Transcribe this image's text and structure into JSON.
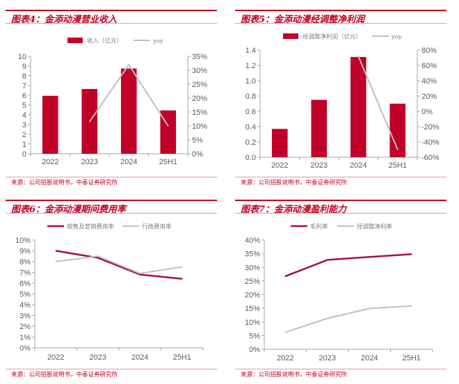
{
  "colors": {
    "accent": "#c00020",
    "bar": "#c00028",
    "line_primary": "#a8103a",
    "line_secondary": "#bfbfbf",
    "axis": "#a6a6a6",
    "text": "#595959"
  },
  "charts": [
    {
      "title": "图表4：金添动漫营业收入",
      "source": "来源：公司招股说明书，中泰证券研究所",
      "chart_data": {
        "type": "bar+line",
        "categories": [
          "2022",
          "2023",
          "2024",
          "25H1"
        ],
        "series": [
          {
            "name": "收入（亿元）",
            "type": "bar",
            "axis": "left",
            "values": [
              5.95,
              6.65,
              8.75,
              4.45
            ]
          },
          {
            "name": "yoy",
            "type": "line",
            "axis": "right",
            "values": [
              null,
              11.5,
              32.0,
              10.0
            ]
          }
        ],
        "ylim_left": [
          0,
          10
        ],
        "yticks_left": [
          "0",
          "1",
          "2",
          "3",
          "4",
          "5",
          "6",
          "7",
          "8",
          "9",
          "10"
        ],
        "ylim_right": [
          0,
          35
        ],
        "yticks_right": [
          "0%",
          "5%",
          "10%",
          "15%",
          "20%",
          "25%",
          "30%",
          "35%"
        ],
        "legend": "top",
        "grid": false
      }
    },
    {
      "title": "图表5：金添动漫经调整净利润",
      "source": "来源：公司招股说明书，中泰证券研究所",
      "chart_data": {
        "type": "bar+line",
        "categories": [
          "2022",
          "2023",
          "2024",
          "25H1"
        ],
        "series": [
          {
            "name": "经调整净利润（亿元）",
            "type": "bar",
            "axis": "left",
            "values": [
              0.37,
              0.75,
              1.31,
              0.7
            ]
          },
          {
            "name": "yoy",
            "type": "line",
            "axis": "right",
            "values": [
              null,
              null,
              72,
              -50
            ]
          }
        ],
        "ylim_left": [
          0,
          1.4
        ],
        "yticks_left": [
          "0.0",
          "0.2",
          "0.4",
          "0.6",
          "0.8",
          "1.0",
          "1.2",
          "1.4"
        ],
        "ylim_right": [
          -60,
          80
        ],
        "yticks_right": [
          "-60%",
          "-40%",
          "-20%",
          "0%",
          "20%",
          "40%",
          "60%",
          "80%"
        ],
        "legend": "top",
        "grid": false
      }
    },
    {
      "title": "图表6：金添动漫期间费用率",
      "source": "来源：公司招股说明书，中泰证券研究所",
      "chart_data": {
        "type": "line",
        "categories": [
          "2022",
          "2023",
          "2024",
          "25H1"
        ],
        "series": [
          {
            "name": "销售及营销费用率",
            "values": [
              9.0,
              8.35,
              6.8,
              6.4
            ]
          },
          {
            "name": "行政费用率",
            "values": [
              8.0,
              8.5,
              6.9,
              7.5
            ]
          }
        ],
        "ylim": [
          0,
          10
        ],
        "yticks": [
          "0%",
          "1%",
          "2%",
          "3%",
          "4%",
          "5%",
          "6%",
          "7%",
          "8%",
          "9%",
          "10%"
        ],
        "legend": "top",
        "grid": false
      }
    },
    {
      "title": "图表7：金添动漫盈利能力",
      "source": "来源：公司招股说明书，中泰证券研究所",
      "chart_data": {
        "type": "line",
        "categories": [
          "2022",
          "2023",
          "2024",
          "25H1"
        ],
        "series": [
          {
            "name": "毛利率",
            "values": [
              26.7,
              32.7,
              33.8,
              34.8
            ]
          },
          {
            "name": "经调整净利率",
            "values": [
              6.2,
              11.3,
              14.9,
              15.9
            ]
          }
        ],
        "ylim": [
          0,
          40
        ],
        "yticks": [
          "0%",
          "5%",
          "10%",
          "15%",
          "20%",
          "25%",
          "30%",
          "35%",
          "40%"
        ],
        "legend": "top",
        "grid": false
      }
    }
  ]
}
